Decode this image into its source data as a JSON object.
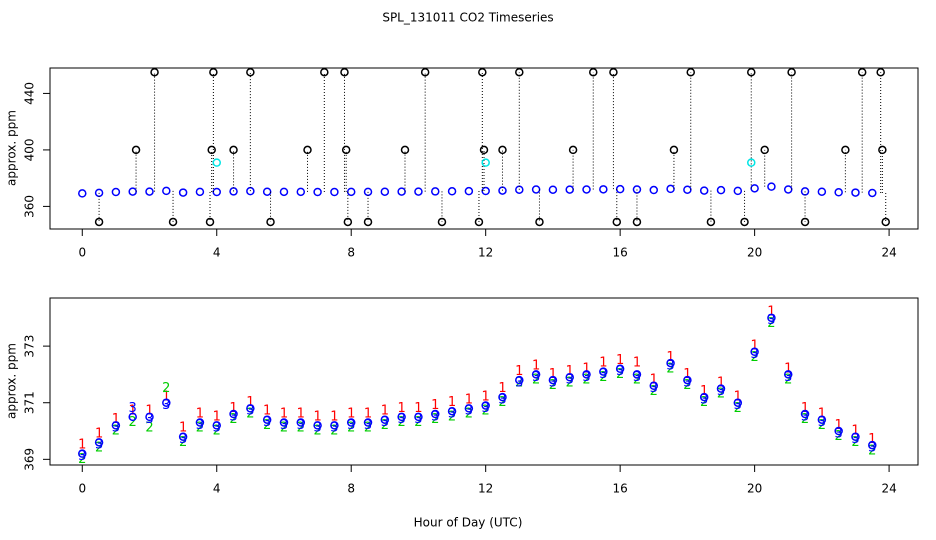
{
  "chart_data": [
    {
      "type": "scatter",
      "title": "SPL_131011  CO2 Timeseries",
      "y_label": "approx. ppm",
      "xlim": [
        -0.96,
        24.86
      ],
      "ylim": [
        344,
        458
      ],
      "xticks": [
        0,
        4,
        8,
        12,
        16,
        20,
        24
      ],
      "yticks": [
        360,
        400,
        440
      ],
      "x": [
        0,
        0.5,
        1,
        1.5,
        2,
        2.5,
        3,
        3.5,
        4,
        4.5,
        5,
        5.5,
        6,
        6.5,
        7,
        7.5,
        8,
        8.5,
        9,
        9.5,
        10,
        10.5,
        11,
        11.5,
        12,
        12.5,
        13,
        13.5,
        14,
        14.5,
        15,
        15.5,
        16,
        16.5,
        17,
        17.5,
        18,
        18.5,
        19,
        19.5,
        20,
        20.5,
        21,
        21.5,
        22,
        22.5,
        23,
        23.5
      ],
      "series": [
        {
          "color": "#0000ff",
          "marker": "circle",
          "values": [
            369.2,
            369.6,
            370.2,
            370.5,
            370.5,
            371,
            369.8,
            370.3,
            370.2,
            370.6,
            370.8,
            370.4,
            370.3,
            370.3,
            370.2,
            370.2,
            370.3,
            370.3,
            370.4,
            370.5,
            370.5,
            370.6,
            370.7,
            370.8,
            370.9,
            371.2,
            371.8,
            372,
            371.8,
            371.9,
            372,
            372.1,
            372.2,
            372,
            371.6,
            372.4,
            371.8,
            371.2,
            371.5,
            371,
            372.8,
            374,
            372,
            370.6,
            370.4,
            370,
            369.8,
            369.5
          ]
        },
        {
          "color": "#000000",
          "marker": "circle",
          "stems": true,
          "x": [
            0.5,
            1.6,
            2.15,
            2.7,
            3.8,
            3.85,
            3.9,
            4.5,
            5.0,
            5.6,
            6.7,
            7.2,
            7.8,
            7.85,
            7.9,
            8.5,
            9.6,
            10.2,
            10.7,
            11.8,
            11.9,
            11.95,
            12.5,
            13.0,
            13.6,
            14.6,
            15.2,
            15.8,
            15.9,
            16.5,
            17.6,
            18.1,
            18.7,
            19.7,
            19.9,
            20.3,
            21.1,
            21.5,
            22.7,
            23.2,
            23.75,
            23.8,
            23.9
          ],
          "values": [
            349,
            400,
            455,
            349,
            349,
            400,
            455,
            400,
            455,
            349,
            400,
            455,
            455,
            400,
            349,
            349,
            400,
            455,
            349,
            349,
            455,
            400,
            400,
            455,
            349,
            400,
            455,
            455,
            349,
            349,
            400,
            455,
            349,
            349,
            455,
            400,
            455,
            349,
            400,
            455,
            455,
            400,
            349
          ]
        },
        {
          "color": "#00e5e5",
          "marker": "circle",
          "x": [
            4.0,
            12.0,
            19.9
          ],
          "values": [
            391,
            391,
            391
          ]
        }
      ]
    },
    {
      "type": "scatter",
      "x_label": "Hour of Day (UTC)",
      "y_label": "approx. ppm",
      "xlim": [
        -0.96,
        24.86
      ],
      "ylim": [
        368.8,
        374.7
      ],
      "xticks": [
        0,
        4,
        8,
        12,
        16,
        20,
        24
      ],
      "yticks": [
        369,
        371,
        373
      ],
      "x": [
        0,
        0.5,
        1,
        1.5,
        2,
        2.5,
        3,
        3.5,
        4,
        4.5,
        5,
        5.5,
        6,
        6.5,
        7,
        7.5,
        8,
        8.5,
        9,
        9.5,
        10,
        10.5,
        11,
        11.5,
        12,
        12.5,
        13,
        13.5,
        14,
        14.5,
        15,
        15.5,
        16,
        16.5,
        17,
        17.5,
        18,
        18.5,
        19,
        19.5,
        20,
        20.5,
        21,
        21.5,
        22,
        22.5,
        23,
        23.5
      ],
      "series": [
        {
          "name": "1",
          "color": "#ff0000",
          "marker": "name",
          "values": [
            369.5,
            369.9,
            370.4,
            370.7,
            370.7,
            371.2,
            370.1,
            370.6,
            370.5,
            370.8,
            371,
            370.7,
            370.6,
            370.6,
            370.5,
            370.5,
            370.6,
            370.6,
            370.7,
            370.8,
            370.8,
            370.9,
            371,
            371.1,
            371.2,
            371.5,
            372.1,
            372.3,
            372,
            372.1,
            372.2,
            372.4,
            372.5,
            372.4,
            371.8,
            372.6,
            372,
            371.4,
            371.7,
            371.2,
            373,
            374.2,
            372.2,
            370.8,
            370.6,
            370.2,
            370,
            369.7
          ]
        },
        {
          "name": "2",
          "color": "#00cd00",
          "marker": "name",
          "values": [
            369,
            369.4,
            370,
            370.3,
            370.1,
            371.5,
            369.6,
            370.1,
            370,
            370.4,
            370.6,
            370.2,
            370.1,
            370.1,
            370,
            370,
            370.1,
            370.1,
            370.2,
            370.3,
            370.3,
            370.4,
            370.5,
            370.6,
            370.7,
            371,
            371.7,
            371.8,
            371.6,
            371.7,
            371.8,
            371.9,
            372,
            371.8,
            371.4,
            372.2,
            371.6,
            371,
            371.3,
            370.8,
            372.6,
            373.8,
            371.8,
            370.4,
            370.2,
            369.8,
            369.6,
            369.3
          ]
        },
        {
          "name": "3",
          "color": "#0000ff",
          "marker": "name",
          "values": [
            369.1,
            369.5,
            370.1,
            370.8,
            370.4,
            370.9,
            369.7,
            370.2,
            370.1,
            370.5,
            370.7,
            370.3,
            370.2,
            370.2,
            370.1,
            370.1,
            370.2,
            370.2,
            370.3,
            370.4,
            370.4,
            370.5,
            370.6,
            370.7,
            370.8,
            371.1,
            371.7,
            371.9,
            371.7,
            371.8,
            371.9,
            372,
            372.1,
            371.9,
            371.5,
            372.3,
            371.7,
            371.1,
            371.4,
            370.9,
            372.7,
            373.9,
            371.9,
            370.5,
            370.3,
            369.9,
            369.7,
            369.4
          ]
        },
        {
          "color": "#0000ff",
          "marker": "circle",
          "values": [
            369.2,
            369.6,
            370.2,
            370.5,
            370.5,
            371,
            369.8,
            370.3,
            370.2,
            370.6,
            370.8,
            370.4,
            370.3,
            370.3,
            370.2,
            370.2,
            370.3,
            370.3,
            370.4,
            370.5,
            370.5,
            370.6,
            370.7,
            370.8,
            370.9,
            371.2,
            371.8,
            372,
            371.8,
            371.9,
            372,
            372.1,
            372.2,
            372,
            371.6,
            372.4,
            371.8,
            371.2,
            371.5,
            371,
            372.8,
            374,
            372,
            370.6,
            370.4,
            370,
            369.8,
            369.5
          ]
        }
      ]
    }
  ]
}
